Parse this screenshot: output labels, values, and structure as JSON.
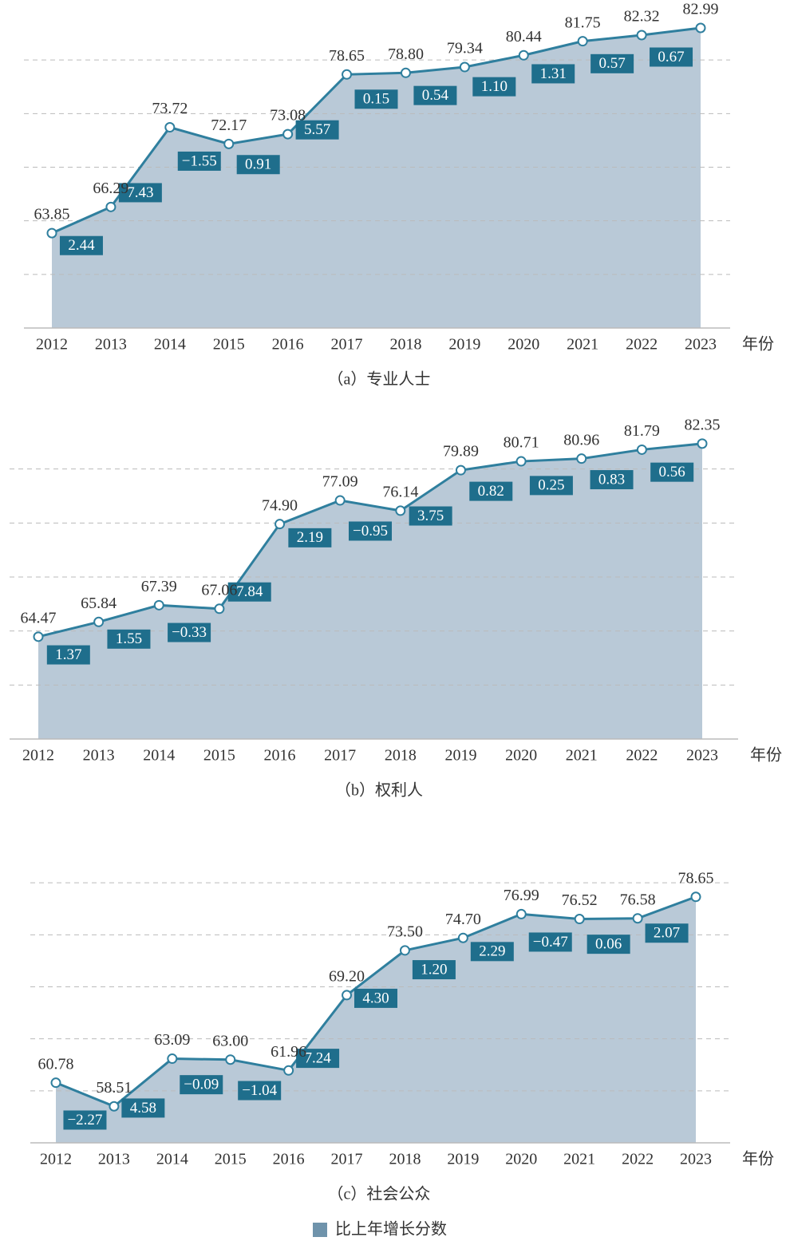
{
  "chart_data": [
    {
      "type": "area",
      "caption": "（a）专业人士",
      "x_label": "年份",
      "categories": [
        "2012",
        "2013",
        "2014",
        "2015",
        "2016",
        "2017",
        "2018",
        "2019",
        "2020",
        "2021",
        "2022",
        "2023"
      ],
      "values": [
        63.85,
        66.29,
        73.72,
        72.17,
        73.08,
        78.65,
        78.8,
        79.34,
        80.44,
        81.75,
        82.32,
        82.99
      ],
      "value_labels": [
        "63.85",
        "66.29",
        "73.72",
        "72.17",
        "73.08",
        "78.65",
        "78.80",
        "79.34",
        "80.44",
        "81.75",
        "82.32",
        "82.99"
      ],
      "changes": {
        "values": [
          null,
          2.44,
          7.43,
          -1.55,
          0.91,
          5.57,
          0.15,
          0.54,
          1.1,
          1.31,
          0.57,
          0.67
        ],
        "value_labels": [
          null,
          "2.44",
          "7.43",
          "−1.55",
          "0.91",
          "5.57",
          "0.15",
          "0.54",
          "1.10",
          "1.31",
          "0.57",
          "0.67"
        ]
      },
      "ylim": [
        55,
        85
      ],
      "yticks": [
        60,
        65,
        70,
        75,
        80
      ],
      "grid": true,
      "color": "#2f7f9e",
      "fill": "#b9c9d7"
    },
    {
      "type": "area",
      "caption": "（b）权利人",
      "x_label": "年份",
      "categories": [
        "2012",
        "2013",
        "2014",
        "2015",
        "2016",
        "2017",
        "2018",
        "2019",
        "2020",
        "2021",
        "2022",
        "2023"
      ],
      "values": [
        64.47,
        65.84,
        67.39,
        67.06,
        74.9,
        77.09,
        76.14,
        79.89,
        80.71,
        80.96,
        81.79,
        82.35
      ],
      "value_labels": [
        "64.47",
        "65.84",
        "67.39",
        "67.06",
        "74.90",
        "77.09",
        "76.14",
        "79.89",
        "80.71",
        "80.96",
        "81.79",
        "82.35"
      ],
      "changes": {
        "values": [
          null,
          1.37,
          1.55,
          -0.33,
          7.84,
          2.19,
          -0.95,
          3.75,
          0.82,
          0.25,
          0.83,
          0.56
        ],
        "value_labels": [
          null,
          "1.37",
          "1.55",
          "−0.33",
          "7.84",
          "2.19",
          "−0.95",
          "3.75",
          "0.82",
          "0.25",
          "0.83",
          "0.56"
        ]
      },
      "ylim": [
        55,
        85
      ],
      "yticks": [
        60,
        65,
        70,
        75,
        80
      ],
      "grid": true,
      "color": "#2f7f9e",
      "fill": "#b9c9d7"
    },
    {
      "type": "area",
      "caption": "（c）社会公众",
      "x_label": "年份",
      "categories": [
        "2012",
        "2013",
        "2014",
        "2015",
        "2016",
        "2017",
        "2018",
        "2019",
        "2020",
        "2021",
        "2022",
        "2023"
      ],
      "values": [
        60.78,
        58.51,
        63.09,
        63.0,
        61.96,
        69.2,
        73.5,
        74.7,
        76.99,
        76.52,
        76.58,
        78.65
      ],
      "value_labels": [
        "60.78",
        "58.51",
        "63.09",
        "63.00",
        "61.96",
        "69.20",
        "73.50",
        "74.70",
        "76.99",
        "76.52",
        "76.58",
        "78.65"
      ],
      "changes": {
        "values": [
          null,
          -2.27,
          4.58,
          -0.09,
          -1.04,
          7.24,
          4.3,
          1.2,
          2.29,
          -0.47,
          0.06,
          2.07
        ],
        "value_labels": [
          null,
          "−2.27",
          "4.58",
          "−0.09",
          "−1.04",
          "7.24",
          "4.30",
          "1.20",
          "2.29",
          "−0.47",
          "0.06",
          "2.07"
        ]
      },
      "ylim": [
        55,
        85
      ],
      "yticks": [
        60,
        65,
        70,
        75,
        80
      ],
      "grid": true,
      "color": "#2f7f9e",
      "fill": "#b9c9d7"
    }
  ],
  "legend": {
    "label": "比上年增长分数",
    "color": "#6f93ab"
  },
  "box_color": "#1f6e8c"
}
